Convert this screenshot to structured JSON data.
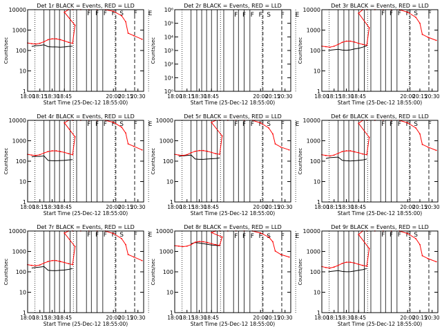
{
  "colors": {
    "events": "#000000",
    "lld": "#ff0000",
    "axis": "#000000",
    "background": "#ffffff"
  },
  "chart_data": [
    {
      "type": "line",
      "title": "Det 1r BLACK = Events, RED = LLD",
      "xlabel": "Start Time (25-Dec-12 18:55:00)",
      "ylabel": "Counts/sec",
      "yscale": "log",
      "xlim": [
        "18:00",
        "20:37"
      ],
      "xticks": [
        "18:00",
        "18:15",
        "18:30",
        "18:45",
        "20:00",
        "20:15",
        "20:30"
      ],
      "ylim": [
        1,
        12000
      ],
      "yticks": [
        "1",
        "10",
        "100",
        "1000",
        "10000"
      ],
      "flags": [
        "F",
        "F",
        "F",
        "F",
        "S",
        "F",
        "E"
      ],
      "series": [
        {
          "color": "#000000",
          "x": [
            "18:05",
            "18:10",
            "18:15",
            "18:20",
            "18:25",
            "18:30",
            "18:35",
            "18:40",
            "18:45",
            "18:50",
            "18:55"
          ],
          "y": [
            175,
            190,
            195,
            210,
            170,
            165,
            165,
            160,
            165,
            175,
            180
          ]
        },
        {
          "color": "#ff0000",
          "x": [
            "18:00",
            "18:05",
            "18:10",
            "18:15",
            "18:20",
            "18:25",
            "18:30",
            "18:35",
            "18:40",
            "18:45",
            "18:50",
            "18:55",
            "18:58",
            "19:00",
            "19:05",
            "19:10",
            "19:20",
            "19:30",
            "19:40",
            "19:50",
            "20:00",
            "20:10",
            "20:15",
            "20:18",
            "20:25",
            "20:35"
          ],
          "y": [
            260,
            240,
            230,
            250,
            300,
            380,
            420,
            420,
            380,
            330,
            280,
            250,
            2000,
            9000,
            12000,
            12000,
            12000,
            12000,
            12000,
            12000,
            10000,
            6000,
            3000,
            800,
            600,
            400
          ]
        }
      ]
    },
    {
      "type": "line",
      "title": "Det 2r BLACK = Events, RED = LLD",
      "xlabel": "Start Time (25-Dec-12 18:55:00)",
      "ylabel": "Counts/sec",
      "yscale": "log",
      "xlim": [
        "18:00",
        "20:37"
      ],
      "xticks": [
        "18:00",
        "18:15",
        "18:30",
        "18:45",
        "20:00",
        "20:15",
        "20:30"
      ],
      "ylim": [
        1,
        1000000
      ],
      "yticks": [
        "10⁰",
        "10¹",
        "10²",
        "10³",
        "10⁴",
        "10⁵",
        "10⁶"
      ],
      "flags": [
        "F",
        "F",
        "F",
        "F",
        "S",
        "F",
        "E"
      ],
      "series": []
    },
    {
      "type": "line",
      "title": "Det 3r BLACK = Events, RED = LLD",
      "xlabel": "Start Time (25-Dec-12 18:55:00)",
      "ylabel": "Counts/sec",
      "yscale": "log",
      "xlim": [
        "18:00",
        "20:37"
      ],
      "xticks": [
        "18:00",
        "18:15",
        "18:30",
        "18:45",
        "20:00",
        "20:15",
        "20:30"
      ],
      "ylim": [
        1,
        12000
      ],
      "yticks": [
        "1",
        "10",
        "100",
        "1000",
        "10000"
      ],
      "flags": [
        "F",
        "F",
        "F",
        "F",
        "S",
        "F",
        "E"
      ],
      "series": [
        {
          "color": "#000000",
          "x": [
            "18:08",
            "18:15",
            "18:20",
            "18:25",
            "18:30",
            "18:35",
            "18:40",
            "18:45",
            "18:50",
            "18:55"
          ],
          "y": [
            110,
            120,
            125,
            115,
            112,
            118,
            130,
            140,
            160,
            190
          ]
        },
        {
          "color": "#ff0000",
          "x": [
            "18:00",
            "18:05",
            "18:10",
            "18:15",
            "18:20",
            "18:25",
            "18:30",
            "18:35",
            "18:40",
            "18:45",
            "18:50",
            "18:55",
            "18:58",
            "19:00",
            "19:05",
            "19:10",
            "19:20",
            "19:30",
            "19:40",
            "19:50",
            "20:00",
            "20:10",
            "20:15",
            "20:18",
            "20:25",
            "20:35"
          ],
          "y": [
            180,
            170,
            160,
            180,
            220,
            280,
            320,
            320,
            290,
            250,
            220,
            200,
            1500,
            8000,
            12000,
            12000,
            12000,
            12000,
            12000,
            12000,
            9000,
            5000,
            2500,
            700,
            500,
            350
          ]
        }
      ]
    },
    {
      "type": "line",
      "title": "Det 4r BLACK = Events, RED = LLD",
      "xlabel": "Start Time (25-Dec-12 18:55:00)",
      "ylabel": "Counts/sec",
      "yscale": "log",
      "xlim": [
        "18:00",
        "20:37"
      ],
      "xticks": [
        "18:00",
        "18:15",
        "18:30",
        "18:45",
        "20:00",
        "20:15",
        "20:30"
      ],
      "ylim": [
        1,
        12000
      ],
      "yticks": [
        "1",
        "10",
        "100",
        "1000",
        "10000"
      ],
      "flags": [
        "F",
        "F",
        "F",
        "F",
        "S",
        "F",
        "E"
      ],
      "series": [
        {
          "color": "#000000",
          "x": [
            "18:05",
            "18:10",
            "18:15",
            "18:20",
            "18:25",
            "18:30",
            "18:35",
            "18:40",
            "18:45",
            "18:50",
            "18:55"
          ],
          "y": [
            180,
            190,
            190,
            200,
            120,
            115,
            115,
            118,
            120,
            125,
            130
          ]
        },
        {
          "color": "#ff0000",
          "x": [
            "18:00",
            "18:05",
            "18:10",
            "18:15",
            "18:20",
            "18:25",
            "18:30",
            "18:35",
            "18:40",
            "18:45",
            "18:50",
            "18:55",
            "18:58",
            "19:00",
            "19:05",
            "19:10",
            "19:20",
            "19:30",
            "19:40",
            "19:50",
            "20:00",
            "20:10",
            "20:15",
            "20:18",
            "20:25",
            "20:35"
          ],
          "y": [
            240,
            220,
            210,
            230,
            280,
            330,
            360,
            360,
            330,
            300,
            260,
            230,
            1800,
            9000,
            12000,
            12000,
            12000,
            12000,
            12000,
            12000,
            9500,
            5500,
            2800,
            800,
            600,
            400
          ]
        }
      ]
    },
    {
      "type": "line",
      "title": "Det 5r BLACK = Events, RED = LLD",
      "xlabel": "Start Time (25-Dec-12 18:55:00)",
      "ylabel": "Counts/sec",
      "yscale": "log",
      "xlim": [
        "18:00",
        "20:37"
      ],
      "xticks": [
        "18:00",
        "18:15",
        "18:30",
        "18:45",
        "20:00",
        "20:15",
        "20:30"
      ],
      "ylim": [
        1,
        12000
      ],
      "yticks": [
        "1",
        "10",
        "100",
        "1000",
        "10000"
      ],
      "flags": [
        "F",
        "F",
        "F",
        "F",
        "S",
        "F",
        "E"
      ],
      "series": [
        {
          "color": "#000000",
          "x": [
            "18:05",
            "18:10",
            "18:15",
            "18:20",
            "18:25",
            "18:30",
            "18:35",
            "18:40",
            "18:45",
            "18:50",
            "18:55"
          ],
          "y": [
            190,
            200,
            210,
            220,
            140,
            135,
            135,
            140,
            145,
            150,
            160
          ]
        },
        {
          "color": "#ff0000",
          "x": [
            "18:00",
            "18:05",
            "18:10",
            "18:15",
            "18:20",
            "18:25",
            "18:30",
            "18:35",
            "18:40",
            "18:45",
            "18:50",
            "18:55",
            "18:58",
            "19:00",
            "19:05",
            "19:10",
            "19:20",
            "19:30",
            "19:40",
            "19:50",
            "20:00",
            "20:10",
            "20:15",
            "20:18",
            "20:25",
            "20:35"
          ],
          "y": [
            240,
            220,
            210,
            230,
            290,
            340,
            370,
            370,
            340,
            300,
            260,
            240,
            2000,
            9500,
            12000,
            12000,
            12000,
            12000,
            12000,
            12000,
            9000,
            5000,
            2500,
            800,
            550,
            400
          ]
        }
      ]
    },
    {
      "type": "line",
      "title": "Det 6r BLACK = Events, RED = LLD",
      "xlabel": "Start Time (25-Dec-12 18:55:00)",
      "ylabel": "Counts/sec",
      "yscale": "log",
      "xlim": [
        "18:00",
        "20:37"
      ],
      "xticks": [
        "18:00",
        "18:15",
        "18:30",
        "18:45",
        "20:00",
        "20:15",
        "20:30"
      ],
      "ylim": [
        1,
        12000
      ],
      "yticks": [
        "1",
        "10",
        "100",
        "1000",
        "10000"
      ],
      "flags": [
        "F",
        "F",
        "F",
        "F",
        "S",
        "F",
        "E"
      ],
      "series": [
        {
          "color": "#000000",
          "x": [
            "18:05",
            "18:10",
            "18:15",
            "18:20",
            "18:25",
            "18:30",
            "18:35",
            "18:40",
            "18:45",
            "18:50",
            "18:55"
          ],
          "y": [
            150,
            165,
            170,
            175,
            120,
            115,
            112,
            115,
            120,
            125,
            140
          ]
        },
        {
          "color": "#ff0000",
          "x": [
            "18:00",
            "18:05",
            "18:10",
            "18:15",
            "18:20",
            "18:25",
            "18:30",
            "18:35",
            "18:40",
            "18:45",
            "18:50",
            "18:55",
            "18:58",
            "19:00",
            "19:05",
            "19:10",
            "19:20",
            "19:30",
            "19:40",
            "19:50",
            "20:00",
            "20:10",
            "20:15",
            "20:18",
            "20:25",
            "20:35"
          ],
          "y": [
            230,
            210,
            200,
            220,
            270,
            330,
            360,
            360,
            320,
            290,
            250,
            230,
            1700,
            8500,
            12000,
            12000,
            12000,
            12000,
            12000,
            12000,
            9000,
            5000,
            2500,
            750,
            550,
            380
          ]
        }
      ]
    },
    {
      "type": "line",
      "title": "Det 7r BLACK = Events, RED = LLD",
      "xlabel": "Start Time (25-Dec-12 18:55:00)",
      "ylabel": "Counts/sec",
      "yscale": "log",
      "xlim": [
        "18:00",
        "20:37"
      ],
      "xticks": [
        "18:00",
        "18:15",
        "18:30",
        "18:45",
        "20:00",
        "20:15",
        "20:30"
      ],
      "ylim": [
        1,
        12000
      ],
      "yticks": [
        "1",
        "10",
        "100",
        "1000",
        "10000"
      ],
      "flags": [
        "F",
        "F",
        "F",
        "F",
        "S",
        "F",
        "E"
      ],
      "series": [
        {
          "color": "#000000",
          "x": [
            "18:05",
            "18:10",
            "18:15",
            "18:20",
            "18:25",
            "18:30",
            "18:35",
            "18:40",
            "18:45",
            "18:50",
            "18:55"
          ],
          "y": [
            170,
            180,
            190,
            200,
            130,
            125,
            125,
            130,
            135,
            145,
            160
          ]
        },
        {
          "color": "#ff0000",
          "x": [
            "18:00",
            "18:05",
            "18:10",
            "18:15",
            "18:20",
            "18:25",
            "18:30",
            "18:35",
            "18:40",
            "18:45",
            "18:50",
            "18:55",
            "18:58",
            "19:00",
            "19:05",
            "19:10",
            "19:20",
            "19:30",
            "19:40",
            "19:50",
            "20:00",
            "20:10",
            "20:15",
            "20:18",
            "20:25",
            "20:35"
          ],
          "y": [
            250,
            230,
            220,
            240,
            300,
            360,
            400,
            400,
            360,
            320,
            280,
            250,
            2000,
            9500,
            12000,
            12000,
            12000,
            12000,
            12000,
            12000,
            9000,
            5000,
            2500,
            800,
            600,
            400
          ]
        }
      ]
    },
    {
      "type": "line",
      "title": "Det 8r BLACK = Events, RED = LLD",
      "xlabel": "Start Time (25-Dec-12 18:55:00)",
      "ylabel": "Counts/sec",
      "yscale": "log",
      "xlim": [
        "18:00",
        "20:37"
      ],
      "xticks": [
        "18:00",
        "18:15",
        "18:30",
        "18:45",
        "20:00",
        "20:15",
        "20:30"
      ],
      "ylim": [
        1,
        12000
      ],
      "yticks": [
        "1",
        "10",
        "100",
        "1000",
        "10000"
      ],
      "flags": [
        "F",
        "F",
        "F",
        "F",
        "S",
        "F",
        "E"
      ],
      "series": [
        {
          "color": "#000000",
          "x": [
            "18:20",
            "18:25",
            "18:30",
            "18:35",
            "18:40",
            "18:45",
            "18:50",
            "18:55"
          ],
          "y": [
            2800,
            3200,
            3000,
            2800,
            2600,
            2400,
            2300,
            2200
          ]
        },
        {
          "color": "#ff0000",
          "x": [
            "18:00",
            "18:05",
            "18:10",
            "18:15",
            "18:20",
            "18:25",
            "18:30",
            "18:35",
            "18:40",
            "18:45",
            "18:50",
            "18:55",
            "18:58",
            "19:00",
            "19:05",
            "19:10",
            "19:20",
            "19:30",
            "19:40",
            "19:50",
            "20:00",
            "20:10",
            "20:15",
            "20:18",
            "20:25",
            "20:35"
          ],
          "y": [
            2200,
            2100,
            2000,
            2100,
            2500,
            3300,
            3600,
            3500,
            3200,
            2800,
            2500,
            2300,
            6000,
            10000,
            12000,
            12000,
            12000,
            12000,
            12000,
            12000,
            9500,
            6000,
            3500,
            1200,
            800,
            600
          ]
        }
      ]
    },
    {
      "type": "line",
      "title": "Det 9r BLACK = Events, RED = LLD",
      "xlabel": "Start Time (25-Dec-12 18:55:00)",
      "ylabel": "Counts/sec",
      "yscale": "log",
      "xlim": [
        "18:00",
        "20:37"
      ],
      "xticks": [
        "18:00",
        "18:15",
        "18:30",
        "18:45",
        "20:00",
        "20:15",
        "20:30"
      ],
      "ylim": [
        1,
        12000
      ],
      "yticks": [
        "1",
        "10",
        "100",
        "1000",
        "10000"
      ],
      "flags": [
        "F",
        "F",
        "F",
        "F",
        "S",
        "F",
        "E"
      ],
      "series": [
        {
          "color": "#000000",
          "x": [
            "18:08",
            "18:15",
            "18:20",
            "18:25",
            "18:30",
            "18:35",
            "18:40",
            "18:45",
            "18:50",
            "18:55"
          ],
          "y": [
            110,
            120,
            125,
            115,
            110,
            112,
            120,
            130,
            140,
            160
          ]
        },
        {
          "color": "#ff0000",
          "x": [
            "18:00",
            "18:05",
            "18:10",
            "18:15",
            "18:20",
            "18:25",
            "18:30",
            "18:35",
            "18:40",
            "18:45",
            "18:50",
            "18:55",
            "18:58",
            "19:00",
            "19:05",
            "19:10",
            "19:20",
            "19:30",
            "19:40",
            "19:50",
            "20:00",
            "20:10",
            "20:15",
            "20:18",
            "20:25",
            "20:35"
          ],
          "y": [
            200,
            180,
            170,
            190,
            230,
            290,
            330,
            330,
            300,
            260,
            230,
            210,
            1600,
            8000,
            12000,
            12000,
            12000,
            12000,
            12000,
            12000,
            9000,
            5000,
            2500,
            700,
            500,
            350
          ]
        }
      ]
    }
  ]
}
